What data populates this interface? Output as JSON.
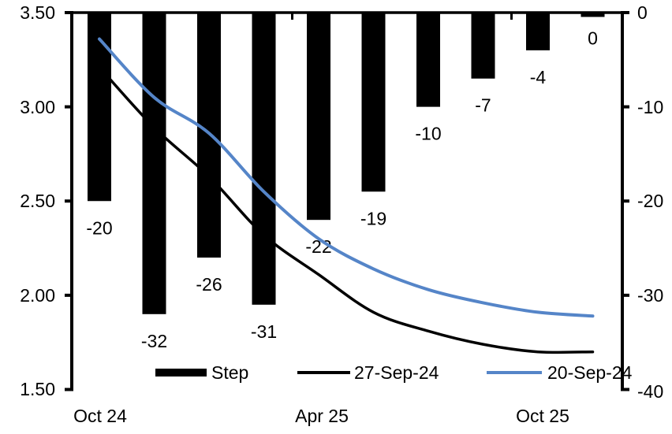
{
  "chart_data": {
    "type": "combo-bar-line-dual-axis",
    "title": "",
    "num_categories": 10,
    "grid": false,
    "legend_position": "bottom-inside",
    "left_axis": {
      "min": 1.5,
      "max": 3.5,
      "ticks": [
        "3.50",
        "3.00",
        "2.50",
        "2.00",
        "1.50"
      ],
      "tick_values": [
        3.5,
        3.0,
        2.5,
        2.0,
        1.5
      ]
    },
    "right_axis": {
      "min": -40,
      "max": 0,
      "ticks": [
        "0",
        "-10",
        "-20",
        "-30",
        "-40"
      ],
      "tick_values": [
        0,
        -10,
        -20,
        -30,
        -40
      ]
    },
    "x_ticks": [
      {
        "label": "Oct 24",
        "category_index": 0
      },
      {
        "label": "Apr 25",
        "category_index": 4
      },
      {
        "label": "Oct 25",
        "category_index": 8
      }
    ],
    "series": [
      {
        "name": "Step",
        "type": "bar",
        "axis": "right",
        "color": "#000000",
        "values": [
          -20,
          -32,
          -26,
          -31,
          -22,
          -19,
          -10,
          -7,
          -4,
          0
        ],
        "data_labels": [
          "-20",
          "-32",
          "-26",
          "-31",
          "-22",
          "-19",
          "-10",
          "-7",
          "-4",
          "0"
        ]
      },
      {
        "name": "27-Sep-24",
        "type": "line",
        "axis": "left",
        "color": "#000000",
        "values": [
          3.21,
          2.89,
          2.63,
          2.32,
          2.11,
          1.91,
          1.81,
          1.74,
          1.7,
          1.7
        ]
      },
      {
        "name": "20-Sep-24",
        "type": "line",
        "axis": "left",
        "color": "#5585C8",
        "values": [
          3.36,
          3.05,
          2.86,
          2.55,
          2.3,
          2.14,
          2.03,
          1.96,
          1.91,
          1.89
        ]
      }
    ]
  }
}
